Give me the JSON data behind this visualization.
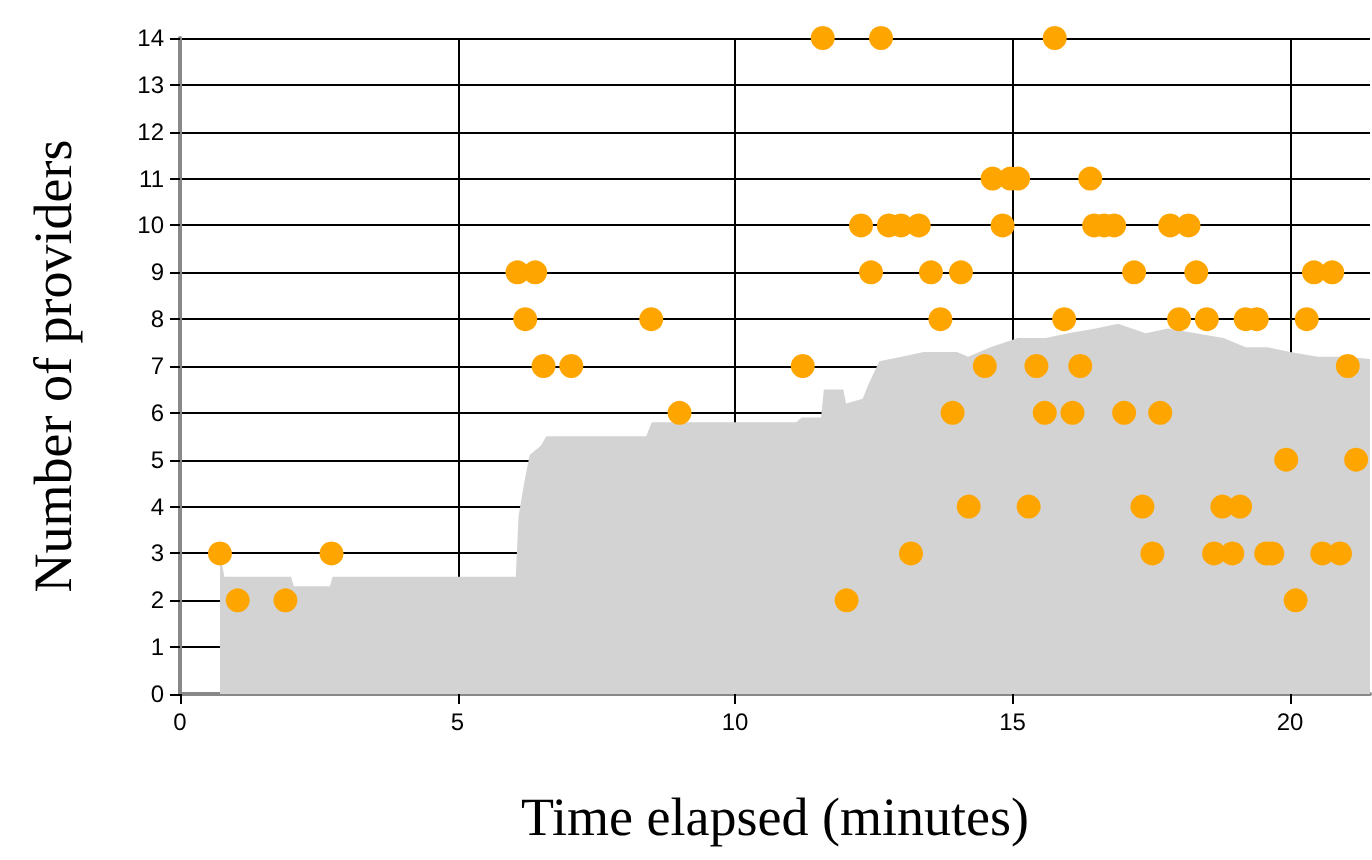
{
  "chart_data": {
    "type": "scatter",
    "xlabel": "Time elapsed (minutes)",
    "ylabel": "Number of providers",
    "xlim": [
      0,
      21.44
    ],
    "xticks": [
      0,
      5,
      10,
      15,
      20
    ],
    "ylim": [
      0,
      14
    ],
    "yticks": [
      0,
      1,
      2,
      3,
      4,
      5,
      6,
      7,
      8,
      9,
      10,
      11,
      12,
      13,
      14
    ],
    "grid": true,
    "series": [
      {
        "type": "area",
        "color": "#d3d3d3",
        "x": [
          0.72,
          0.8,
          2.0,
          2.05,
          2.7,
          2.75,
          6.05,
          6.1,
          6.2,
          6.3,
          6.5,
          6.6,
          7.0,
          7.1,
          8.4,
          8.5,
          11.1,
          11.2,
          11.55,
          11.6,
          11.95,
          12.0,
          12.3,
          12.4,
          12.6,
          13.0,
          13.4,
          14.0,
          14.2,
          14.6,
          15.1,
          15.6,
          16.0,
          16.5,
          16.9,
          17.4,
          17.8,
          18.3,
          18.8,
          19.2,
          19.6,
          20.0,
          20.5,
          21.0,
          21.44
        ],
        "values": [
          3.0,
          2.5,
          2.5,
          2.3,
          2.3,
          2.5,
          2.5,
          3.8,
          4.5,
          5.1,
          5.3,
          5.5,
          5.5,
          5.5,
          5.5,
          5.8,
          5.8,
          5.9,
          5.9,
          6.5,
          6.5,
          6.2,
          6.3,
          6.6,
          7.1,
          7.2,
          7.3,
          7.3,
          7.2,
          7.4,
          7.6,
          7.6,
          7.7,
          7.8,
          7.9,
          7.7,
          7.8,
          7.7,
          7.6,
          7.4,
          7.4,
          7.3,
          7.2,
          7.2,
          7.15
        ]
      },
      {
        "marker": "circle",
        "color": "#ffa500",
        "x": [
          0.72,
          2.73,
          1.04,
          1.9,
          6.08,
          6.4,
          6.22,
          8.49,
          6.55,
          7.05,
          9.0,
          11.58,
          12.63,
          15.76,
          14.64,
          14.96,
          15.1,
          12.27,
          12.77,
          12.99,
          13.31,
          14.82,
          12.45,
          13.53,
          14.07,
          13.7,
          15.93,
          11.22,
          14.5,
          15.43,
          16.22,
          13.92,
          15.58,
          16.08,
          14.21,
          15.29,
          13.17,
          12.01,
          16.4,
          16.47,
          16.65,
          16.83,
          17.84,
          18.17,
          17.19,
          18.31,
          20.43,
          20.76,
          18.0,
          18.5,
          19.2,
          19.4,
          20.3,
          21.04,
          17.01,
          17.66,
          19.93,
          21.19,
          17.34,
          18.78,
          19.1,
          17.52,
          18.63,
          18.96,
          19.57,
          19.68,
          20.58,
          20.9,
          20.1
        ],
        "values": [
          3,
          3,
          2,
          2,
          9,
          9,
          8,
          8,
          7,
          7,
          6,
          14,
          14,
          14,
          11,
          11,
          11,
          10,
          10,
          10,
          10,
          10,
          9,
          9,
          9,
          8,
          8,
          7,
          7,
          7,
          7,
          6,
          6,
          6,
          4,
          4,
          3,
          2,
          11,
          10,
          10,
          10,
          10,
          10,
          9,
          9,
          9,
          9,
          8,
          8,
          8,
          8,
          8,
          7,
          6,
          6,
          5,
          5,
          4,
          4,
          4,
          3,
          3,
          3,
          3,
          3,
          3,
          3,
          2
        ]
      }
    ]
  }
}
